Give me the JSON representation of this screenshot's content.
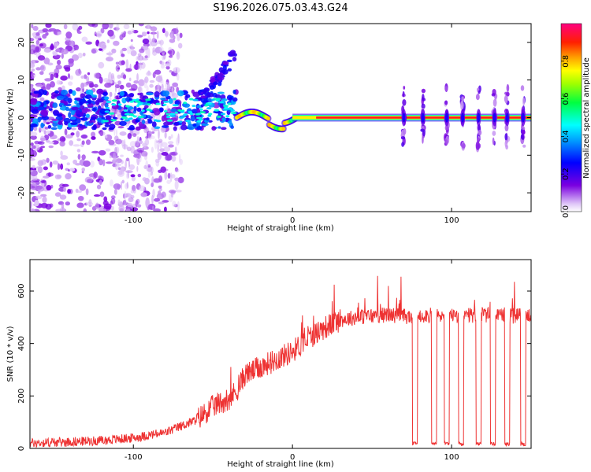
{
  "chart_data": [
    {
      "type": "heatmap",
      "title": "S196.2026.075.03.43.G24",
      "xlabel": "Height of straight line (km)",
      "ylabel": "Frequency (Hz)",
      "xlim": [
        -165,
        150
      ],
      "ylim": [
        -25,
        25
      ],
      "xticks": [
        -100,
        0,
        100
      ],
      "yticks": [
        -20,
        -10,
        0,
        10,
        20
      ],
      "xtick_labels": [
        "-100",
        "0",
        "100"
      ],
      "ytick_labels": [
        "-20",
        "-10",
        "0",
        "10",
        "20"
      ],
      "colorbar": {
        "label": "Normalized spectral amplitude",
        "range": [
          0.0,
          1.0
        ],
        "ticks": [
          0.0,
          0.2,
          0.4,
          0.6,
          0.8
        ],
        "tick_labels": [
          "0.0",
          "0.2",
          "0.4",
          "0.6",
          "0.8"
        ],
        "colormap": "rainbow (purple-blue-cyan-green-yellow-orange-red-magenta)"
      },
      "features": [
        {
          "description": "noisy scattered low-amplitude energy",
          "x_range": [
            -165,
            -75
          ],
          "freq_range": [
            -25,
            25
          ]
        },
        {
          "description": "diffuse band near 0 Hz, medium amplitude",
          "x_range": [
            -120,
            -35
          ],
          "freq_center": 2
        },
        {
          "description": "wavy tracking signal",
          "x_range": [
            -35,
            0
          ],
          "freq_center": 0,
          "amplitude": 0.8
        },
        {
          "description": "steady carrier at 0 Hz, max amplitude",
          "x_range": [
            0,
            150
          ],
          "freq_center": 0,
          "amplitude": 0.95
        },
        {
          "description": "periodic vertical spikes",
          "x_positions": [
            70,
            82,
            97,
            107,
            117,
            127,
            135,
            145
          ]
        }
      ]
    },
    {
      "type": "line",
      "xlabel": "Height of straight line (km)",
      "ylabel": "SNR (10 * v/v)",
      "xlim": [
        -165,
        150
      ],
      "ylim": [
        0,
        720
      ],
      "xticks": [
        -100,
        0,
        100
      ],
      "yticks": [
        0,
        200,
        400,
        600
      ],
      "xtick_labels": [
        "-100",
        "0",
        "100"
      ],
      "ytick_labels": [
        "0",
        "200",
        "400",
        "600"
      ],
      "series": [
        {
          "name": "SNR",
          "color": "#ee3333",
          "x": [
            -165,
            -140,
            -120,
            -100,
            -80,
            -60,
            -50,
            -40,
            -35,
            -30,
            -20,
            -10,
            0,
            10,
            20,
            30,
            40,
            50,
            60,
            70,
            75,
            80,
            90,
            100,
            110,
            120,
            130,
            140,
            150
          ],
          "y": [
            20,
            25,
            30,
            40,
            60,
            110,
            160,
            190,
            220,
            280,
            310,
            340,
            370,
            420,
            460,
            490,
            500,
            505,
            510,
            505,
            500,
            510,
            505,
            510,
            505,
            510,
            500,
            505,
            510
          ],
          "dropouts": [
            {
              "x": 77,
              "y": 10
            },
            {
              "x": 89,
              "y": 10
            },
            {
              "x": 97,
              "y": 10
            },
            {
              "x": 106,
              "y": 10
            },
            {
              "x": 117,
              "y": 10
            },
            {
              "x": 126,
              "y": 10
            },
            {
              "x": 135,
              "y": 10
            },
            {
              "x": 145,
              "y": 10
            }
          ]
        }
      ]
    }
  ]
}
